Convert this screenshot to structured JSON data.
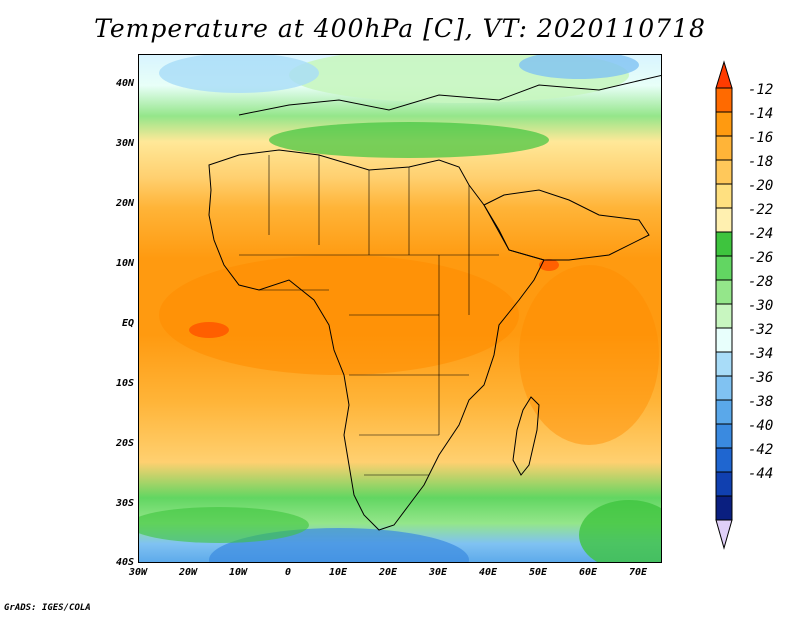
{
  "title": "Temperature at 400hPa [C], VT: 2020110718",
  "credit": "GrADS: IGES/COLA",
  "y_axis_labels": [
    "40N",
    "30N",
    "20N",
    "10N",
    "EQ",
    "10S",
    "20S",
    "30S",
    "40S"
  ],
  "x_axis_labels": [
    "30W",
    "20W",
    "10W",
    "0",
    "10E",
    "20E",
    "30E",
    "40E",
    "50E",
    "60E",
    "70E"
  ],
  "colorbar": {
    "labels": [
      "-12",
      "-14",
      "-16",
      "-18",
      "-20",
      "-22",
      "-24",
      "-26",
      "-28",
      "-30",
      "-32",
      "-34",
      "-36",
      "-38",
      "-40",
      "-42",
      "-44"
    ],
    "colors": [
      "#ff3b00",
      "#ff6a00",
      "#ff9a10",
      "#ffb438",
      "#ffd070",
      "#ffe898",
      "#fff6c0",
      "#3ec43e",
      "#62d662",
      "#94e68a",
      "#c8f6c0",
      "#e8fff8",
      "#a8dcf8",
      "#80c2f2",
      "#5aa8ea",
      "#3a8ae0",
      "#1f66d0",
      "#1040b0",
      "#0a1f80",
      "#e0d0f8"
    ]
  },
  "map": {
    "region": "Africa",
    "lon_range": [
      -30,
      75
    ],
    "lat_range": [
      -40,
      45
    ]
  }
}
